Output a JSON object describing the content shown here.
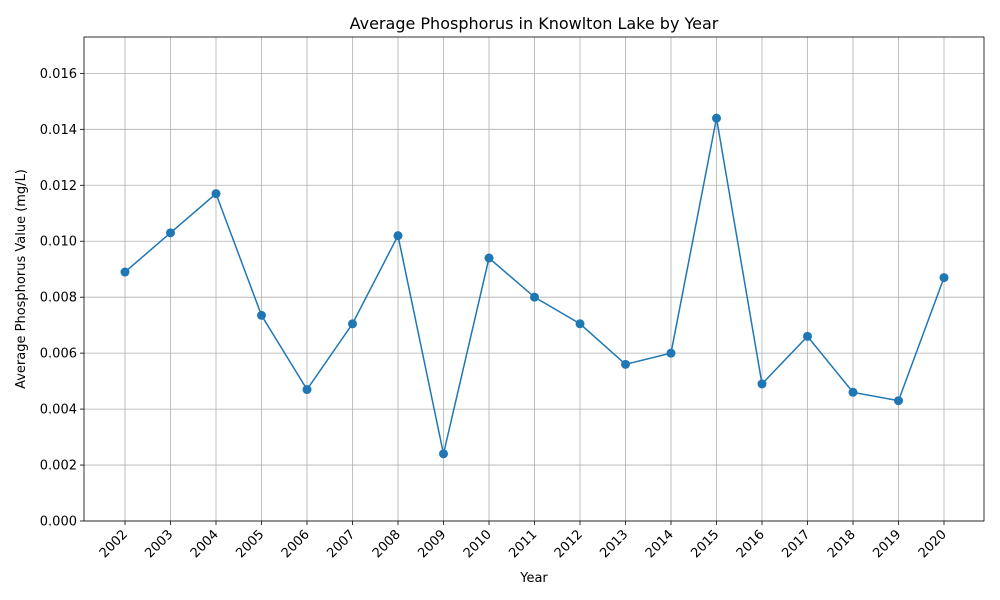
{
  "chart_data": {
    "type": "line",
    "title": "Average Phosphorus in Knowlton Lake by Year",
    "xlabel": "Year",
    "ylabel": "Average Phosphorus Value (mg/L)",
    "grid": true,
    "color": "#1f77b4",
    "marker": "circle",
    "x": [
      "2002",
      "2003",
      "2004",
      "2005",
      "2006",
      "2007",
      "2008",
      "2009",
      "2010",
      "2011",
      "2012",
      "2013",
      "2014",
      "2015",
      "2016",
      "2017",
      "2018",
      "2019",
      "2020"
    ],
    "series": [
      {
        "values": [
          0.0089,
          0.0103,
          0.0117,
          0.00735,
          0.0047,
          0.00705,
          0.0102,
          0.0024,
          0.0094,
          0.008,
          0.00705,
          0.0056,
          0.006,
          0.0144,
          0.0049,
          0.0066,
          0.0046,
          0.0043,
          0.0087
        ]
      }
    ],
    "ylim": [
      0,
      0.0173
    ],
    "yticks": [
      "0.000",
      "0.002",
      "0.004",
      "0.006",
      "0.008",
      "0.010",
      "0.012",
      "0.014",
      "0.016"
    ],
    "ytick_values": [
      0,
      0.002,
      0.004,
      0.006,
      0.008,
      0.01,
      0.012,
      0.014,
      0.016
    ]
  }
}
